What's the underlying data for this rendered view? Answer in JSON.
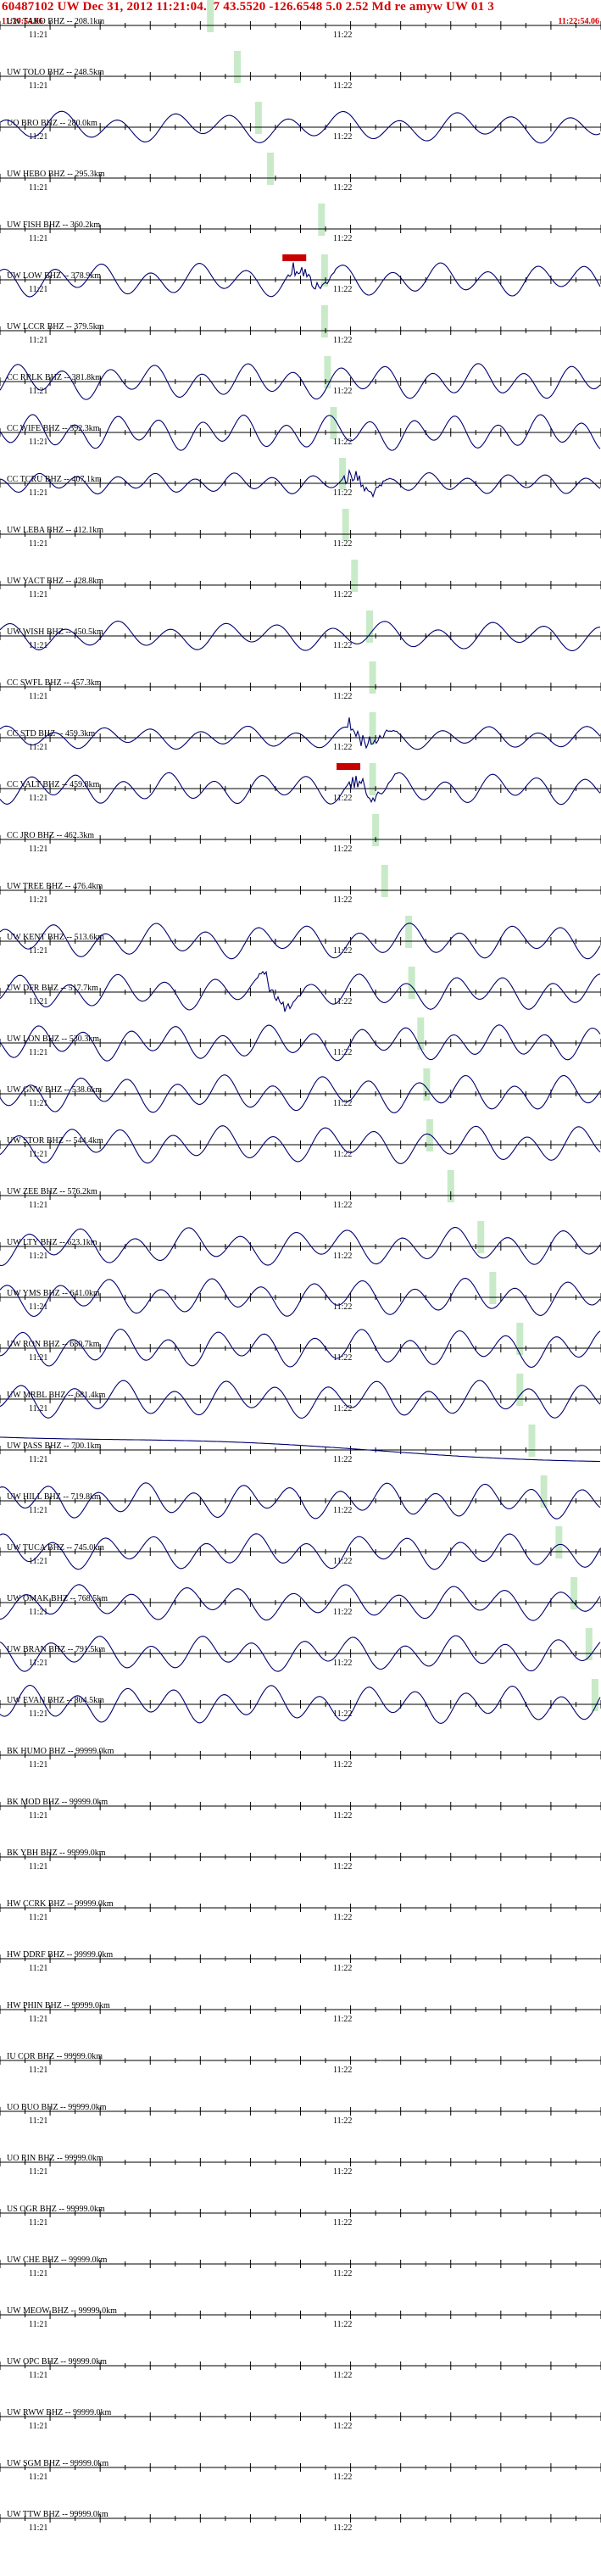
{
  "header": {
    "title": "60487102 UW Dec 31, 2012 11:21:04.07    43.5520 -126.6548  5.0 2.52 Md re amyw UW 01   3",
    "time_start": "11:20:54.06",
    "time_end": "11:22:54.06"
  },
  "tick_labels": {
    "minute1": "11:21",
    "minute2": "11:22"
  },
  "colors": {
    "trace": "#00006e",
    "pick": "#c8eac8",
    "marker": "#c80000",
    "title": "#d40000"
  },
  "traces": [
    {
      "label": "UW TAKO BHZ -- 208.1km",
      "pick": 0.35,
      "amp": 0
    },
    {
      "label": "UW TOLO BHZ -- 248.5km",
      "pick": 0.395,
      "amp": 0
    },
    {
      "label": "UO BRO BHZ -- 280.0km",
      "pick": 0.43,
      "amp": 0.75,
      "freq": 0.9
    },
    {
      "label": "UW HEBO BHZ -- 295.3km",
      "pick": 0.45,
      "amp": 0
    },
    {
      "label": "UW FISH BHZ -- 360.2km",
      "pick": 0.535,
      "amp": 0
    },
    {
      "label": "UW LOW BHZ -- 378.9km",
      "pick": 0.54,
      "amp": 0.8,
      "freq": 1.05,
      "burst": 0.48,
      "marker": 0.47
    },
    {
      "label": "UW LCCR BHZ -- 379.5km",
      "pick": 0.54,
      "amp": 0
    },
    {
      "label": "CC RRLK BHZ -- 381.8km",
      "pick": 0.545,
      "amp": 0.85,
      "freq": 1.1
    },
    {
      "label": "CC WIFE BHZ -- 392.3km",
      "pick": 0.555,
      "amp": 0.85,
      "freq": 1.2
    },
    {
      "label": "CC TCRU BHZ -- 407.1km",
      "pick": 0.57,
      "amp": 0.5,
      "freq": 1.3,
      "burst": 0.57
    },
    {
      "label": "UW LEBA BHZ -- 412.1km",
      "pick": 0.575,
      "amp": 0
    },
    {
      "label": "UW YACT BHZ -- 428.8km",
      "pick": 0.59,
      "amp": 0
    },
    {
      "label": "UW WISH BHZ -- 450.5km",
      "pick": 0.615,
      "amp": 0.7,
      "freq": 0.95
    },
    {
      "label": "CC SWFL BHZ -- 457.3km",
      "pick": 0.62,
      "amp": 0
    },
    {
      "label": "CC STD BHZ -- 459.3km",
      "pick": 0.62,
      "amp": 0.55,
      "freq": 1.05,
      "burst": 0.58
    },
    {
      "label": "CC VALT BHZ -- 459.8km",
      "pick": 0.62,
      "amp": 0.75,
      "freq": 1.1,
      "burst": 0.58,
      "marker": 0.56
    },
    {
      "label": "CC JRO BHZ -- 462.3km",
      "pick": 0.625,
      "amp": 0
    },
    {
      "label": "UW TREE BHZ -- 476.4km",
      "pick": 0.64,
      "amp": 0
    },
    {
      "label": "UW KENT BHZ -- 513.6km",
      "pick": 0.68,
      "amp": 0.85,
      "freq": 1.0
    },
    {
      "label": "UW DFR BHZ -- 517.7km",
      "pick": 0.685,
      "amp": 0.85,
      "freq": 1.05,
      "burst": 0.43
    },
    {
      "label": "UW LON BHZ -- 530.3km",
      "pick": 0.7,
      "amp": 0.85,
      "freq": 1.1
    },
    {
      "label": "UW GNW BHZ -- 538.6km",
      "pick": 0.71,
      "amp": 0.9,
      "freq": 1.05
    },
    {
      "label": "UW STOR BHZ -- 544.4km",
      "pick": 0.715,
      "amp": 0.9,
      "freq": 1.0
    },
    {
      "label": "UW ZEE BHZ -- 576.2km",
      "pick": 0.75,
      "amp": 0
    },
    {
      "label": "UW LTY BHZ -- 623.1km",
      "pick": 0.8,
      "amp": 0.9,
      "freq": 0.95
    },
    {
      "label": "UW YMS BHZ -- 641.0km",
      "pick": 0.82,
      "amp": 0.9,
      "freq": 1.0
    },
    {
      "label": "UW RON BHZ -- 680.7km",
      "pick": 0.865,
      "amp": 0.9,
      "freq": 1.05
    },
    {
      "label": "UW MRBL BHZ -- 681.4km",
      "pick": 0.865,
      "amp": 0.9,
      "freq": 1.0
    },
    {
      "label": "UW PASS BHZ -- 700.1km",
      "pick": 0.885,
      "amp": 0.1,
      "freq": 0,
      "drift": true
    },
    {
      "label": "UW HILL BHZ -- 719.8km",
      "pick": 0.905,
      "amp": 0.85,
      "freq": 1.05
    },
    {
      "label": "UW TUCA BHZ -- 745.0km",
      "pick": 0.93,
      "amp": 0.85,
      "freq": 1.0
    },
    {
      "label": "UW OMAK BHZ -- 768.5km",
      "pick": 0.955,
      "amp": 0.85,
      "freq": 0.95
    },
    {
      "label": "UW BRAN BHZ -- 791.5km",
      "pick": 0.98,
      "amp": 0.85,
      "freq": 1.0
    },
    {
      "label": "UW EVAN BHZ -- 804.5km",
      "pick": 0.99,
      "amp": 0.9,
      "freq": 1.05
    },
    {
      "label": "BK HUMO BHZ -- 99999.0km",
      "amp": 0
    },
    {
      "label": "BK MOD BHZ -- 99999.0km",
      "amp": 0
    },
    {
      "label": "BK YBH BHZ -- 99999.0km",
      "amp": 0
    },
    {
      "label": "HW CCRK BHZ -- 99999.0km",
      "amp": 0
    },
    {
      "label": "HW DDRF BHZ -- 99999.0km",
      "amp": 0
    },
    {
      "label": "HW PHIN BHZ -- 99999.0km",
      "amp": 0
    },
    {
      "label": "IU COR BHZ -- 99999.0km",
      "amp": 0
    },
    {
      "label": "UO BUO BHZ -- 99999.0km",
      "amp": 0
    },
    {
      "label": "UO RIN BHZ -- 99999.0km",
      "amp": 0
    },
    {
      "label": "US OGR BHZ -- 99999.0km",
      "amp": 0
    },
    {
      "label": "UW CHE BHZ -- 99999.0km",
      "amp": 0
    },
    {
      "label": "UW MEOW BHZ -- 99999.0km",
      "amp": 0
    },
    {
      "label": "UW OPC BHZ -- 99999.0km",
      "amp": 0
    },
    {
      "label": "UW RWW BHZ -- 99999.0km",
      "amp": 0
    },
    {
      "label": "UW SGM BHZ -- 99999.0km",
      "amp": 0
    },
    {
      "label": "UW TTW BHZ -- 99999.0km",
      "amp": 0
    }
  ]
}
